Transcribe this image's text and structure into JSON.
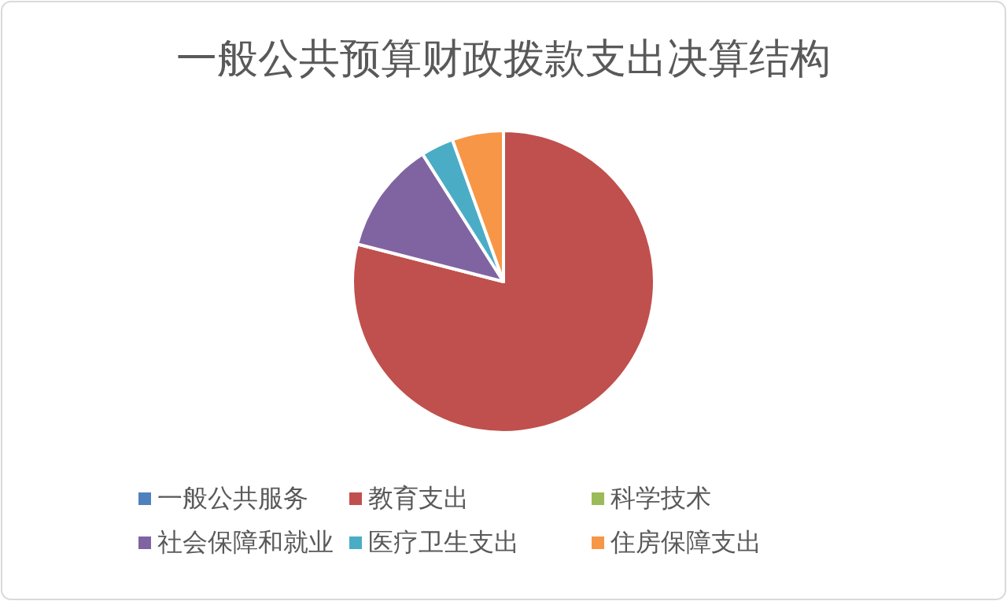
{
  "chart_data": {
    "type": "pie",
    "title": "一般公共预算财政拨款支出决算结构",
    "categories": [
      "一般公共服务",
      "教育支出",
      "科学技术",
      "社会保障和就业",
      "医疗卫生支出",
      "住房保障支出"
    ],
    "values": [
      0,
      79,
      0,
      12,
      3.5,
      5.5
    ],
    "colors": [
      "#4f81bd",
      "#c0504d",
      "#9bbb59",
      "#8064a2",
      "#4bacc6",
      "#f79646"
    ],
    "legend": "bottom"
  }
}
